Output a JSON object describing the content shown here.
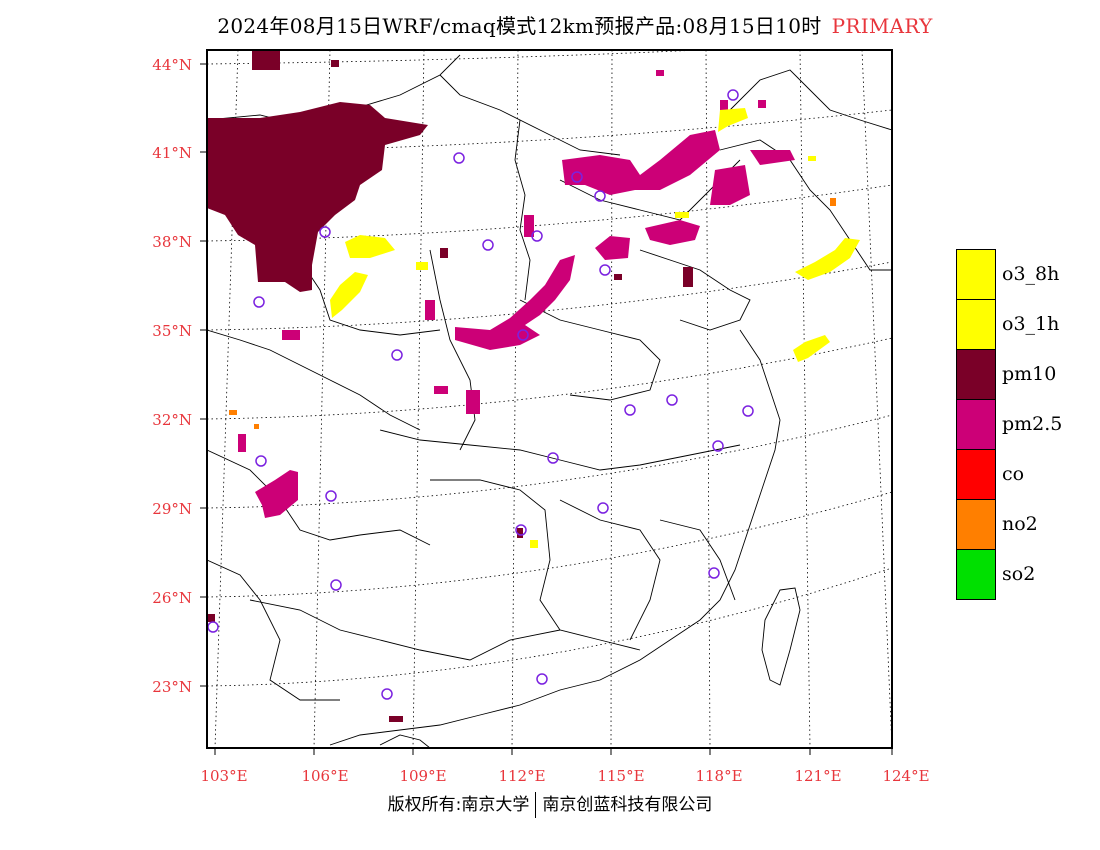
{
  "title": {
    "main": "2024年08月15日WRF/cmaq模式12km预报产品:08月15日10时",
    "tag": "PRIMARY"
  },
  "map": {
    "lat_labels": [
      "44°N",
      "41°N",
      "38°N",
      "35°N",
      "32°N",
      "29°N",
      "26°N",
      "23°N"
    ],
    "lon_labels": [
      "103°E",
      "106°E",
      "109°E",
      "112°E",
      "115°E",
      "118°E",
      "121°E",
      "124°E"
    ],
    "colors": {
      "o3": "#ffff00",
      "pm10": "#7a0028",
      "pm25": "#cc0077",
      "co": "#ff0000",
      "no2": "#ff7f00",
      "so2": "#00e000",
      "station": "#7b22e0"
    }
  },
  "legend": [
    {
      "label": "o3_8h",
      "color": "#ffff00"
    },
    {
      "label": "o3_1h",
      "color": "#ffff00"
    },
    {
      "label": "pm10",
      "color": "#7a0028"
    },
    {
      "label": "pm2.5",
      "color": "#cc0077"
    },
    {
      "label": "co",
      "color": "#ff0000"
    },
    {
      "label": "no2",
      "color": "#ff7f00"
    },
    {
      "label": "so2",
      "color": "#00e000"
    }
  ],
  "footer": {
    "left": "版权所有:南京大学",
    "right": "南京创蓝科技有限公司"
  }
}
